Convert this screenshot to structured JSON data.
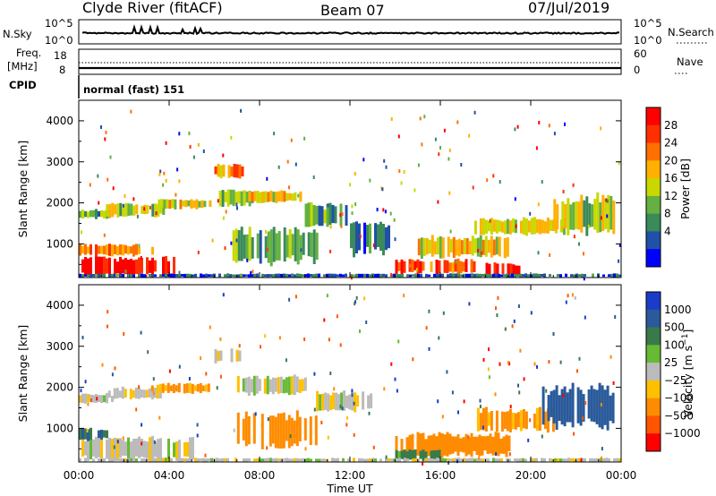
{
  "header": {
    "station": "Clyde River (fitACF)",
    "beam": "Beam 07",
    "date": "07/Jul/2019"
  },
  "noise_panel": {
    "left_label": "N.Sky",
    "left_ticks": [
      "10^5",
      "10^0"
    ],
    "right_ticks": [
      "10^5",
      "10^0"
    ],
    "right_label": "N.Search"
  },
  "freq_panel": {
    "left_label_1": "Freq.",
    "left_label_2": "[MHz]",
    "left_ticks": [
      "18",
      "8"
    ],
    "right_ticks": [
      "60",
      "0"
    ],
    "right_label": "Nave"
  },
  "cpid": {
    "label": "CPID",
    "value": "normal (fast) 151"
  },
  "colors": {
    "power_scale": [
      "#0000ff",
      "#2050a8",
      "#3a8a5a",
      "#64b040",
      "#c8d800",
      "#ffb000",
      "#ff7000",
      "#ff3000",
      "#ff0000"
    ],
    "velocity_scale": [
      "#1a3dc8",
      "#2a5a9a",
      "#3a7a4a",
      "#66bb33",
      "#bbbbbb",
      "#ffc000",
      "#ff8c00",
      "#ff5500",
      "#ff0000"
    ],
    "gray": "#c0c0c0"
  },
  "chart_data": [
    {
      "type": "heatmap",
      "panel": "power",
      "ylabel": "Slant Range [km]",
      "yticks": [
        "1000",
        "2000",
        "3000",
        "4000"
      ],
      "ylim": [
        180,
        4500
      ],
      "xlim": [
        "00:00",
        "24:00"
      ],
      "colorbar": {
        "label": "Power [dB]",
        "ticks": [
          "28",
          "24",
          "20",
          "16",
          "12",
          "8",
          "4"
        ],
        "range": [
          0,
          32
        ]
      },
      "regions": [
        {
          "t0": 0.0,
          "t1": 4.2,
          "r0": 200,
          "r1": 700,
          "level": 30
        },
        {
          "t0": 0.0,
          "t1": 3.3,
          "r0": 700,
          "r1": 1000,
          "level": 22
        },
        {
          "t0": 0.0,
          "t1": 1.4,
          "r0": 1600,
          "r1": 1850,
          "level": 12
        },
        {
          "t0": 1.2,
          "t1": 3.8,
          "r0": 1650,
          "r1": 2000,
          "level": 14
        },
        {
          "t0": 3.5,
          "t1": 5.8,
          "r0": 1850,
          "r1": 2100,
          "level": 18
        },
        {
          "t0": 6.0,
          "t1": 7.2,
          "r0": 2600,
          "r1": 2950,
          "level": 22
        },
        {
          "t0": 6.2,
          "t1": 8.2,
          "r0": 1900,
          "r1": 2350,
          "level": 14
        },
        {
          "t0": 7.5,
          "t1": 9.8,
          "r0": 2000,
          "r1": 2300,
          "level": 18
        },
        {
          "t0": 6.8,
          "t1": 10.5,
          "r0": 500,
          "r1": 1400,
          "level": 12
        },
        {
          "t0": 10.0,
          "t1": 12.0,
          "r0": 1400,
          "r1": 2000,
          "level": 10
        },
        {
          "t0": 12.0,
          "t1": 13.7,
          "r0": 700,
          "r1": 1600,
          "level": 8
        },
        {
          "t0": 14.0,
          "t1": 17.5,
          "r0": 250,
          "r1": 650,
          "level": 26
        },
        {
          "t0": 15.0,
          "t1": 19.0,
          "r0": 650,
          "r1": 1200,
          "level": 18
        },
        {
          "t0": 18.0,
          "t1": 19.5,
          "r0": 200,
          "r1": 550,
          "level": 30
        },
        {
          "t0": 17.5,
          "t1": 21.5,
          "r0": 1200,
          "r1": 1650,
          "level": 16
        },
        {
          "t0": 21.0,
          "t1": 23.8,
          "r0": 1200,
          "r1": 2200,
          "level": 14
        },
        {
          "t0": 0.0,
          "t1": 24.0,
          "r0": 180,
          "r1": 280,
          "level": 6
        }
      ]
    },
    {
      "type": "heatmap",
      "panel": "velocity",
      "ylabel": "Slant Range [km]",
      "yticks": [
        "1000",
        "2000",
        "3000",
        "4000"
      ],
      "ylim": [
        180,
        4500
      ],
      "xlim": [
        "00:00",
        "24:00"
      ],
      "xticks": [
        "00:00",
        "04:00",
        "08:00",
        "12:00",
        "16:00",
        "20:00",
        "00:00"
      ],
      "xlabel": "Time UT",
      "colorbar": {
        "label": "Velocity [m s^-1]",
        "ticks": [
          "1000",
          "500",
          "100",
          "25",
          "−25",
          "−100",
          "−500",
          "−1000"
        ],
        "range": [
          -1200,
          1200
        ]
      },
      "regions": [
        {
          "t0": 0.0,
          "t1": 5.0,
          "r0": 200,
          "r1": 800,
          "level": 0
        },
        {
          "t0": 0.0,
          "t1": 1.3,
          "r0": 700,
          "r1": 1000,
          "level": 300
        },
        {
          "t0": 0.0,
          "t1": 1.5,
          "r0": 1600,
          "r1": 1850,
          "level": 0
        },
        {
          "t0": 1.3,
          "t1": 3.6,
          "r0": 1700,
          "r1": 2000,
          "level": 0
        },
        {
          "t0": 3.2,
          "t1": 5.8,
          "r0": 1850,
          "r1": 2100,
          "level": -120
        },
        {
          "t0": 6.0,
          "t1": 7.2,
          "r0": 2600,
          "r1": 2950,
          "level": 0
        },
        {
          "t0": 7.0,
          "t1": 10.0,
          "r0": 1800,
          "r1": 2300,
          "level": 0
        },
        {
          "t0": 7.0,
          "t1": 10.5,
          "r0": 500,
          "r1": 1400,
          "level": -300
        },
        {
          "t0": 10.5,
          "t1": 13.0,
          "r0": 1400,
          "r1": 1900,
          "level": 0
        },
        {
          "t0": 14.0,
          "t1": 19.0,
          "r0": 300,
          "r1": 900,
          "level": -300
        },
        {
          "t0": 14.0,
          "t1": 16.0,
          "r0": 200,
          "r1": 500,
          "level": 120
        },
        {
          "t0": 17.5,
          "t1": 21.0,
          "r0": 900,
          "r1": 1500,
          "level": -120
        },
        {
          "t0": 20.5,
          "t1": 23.8,
          "r0": 1000,
          "r1": 2100,
          "level": 600
        },
        {
          "t0": 0.0,
          "t1": 24.0,
          "r0": 180,
          "r1": 280,
          "level": 0
        }
      ]
    }
  ]
}
